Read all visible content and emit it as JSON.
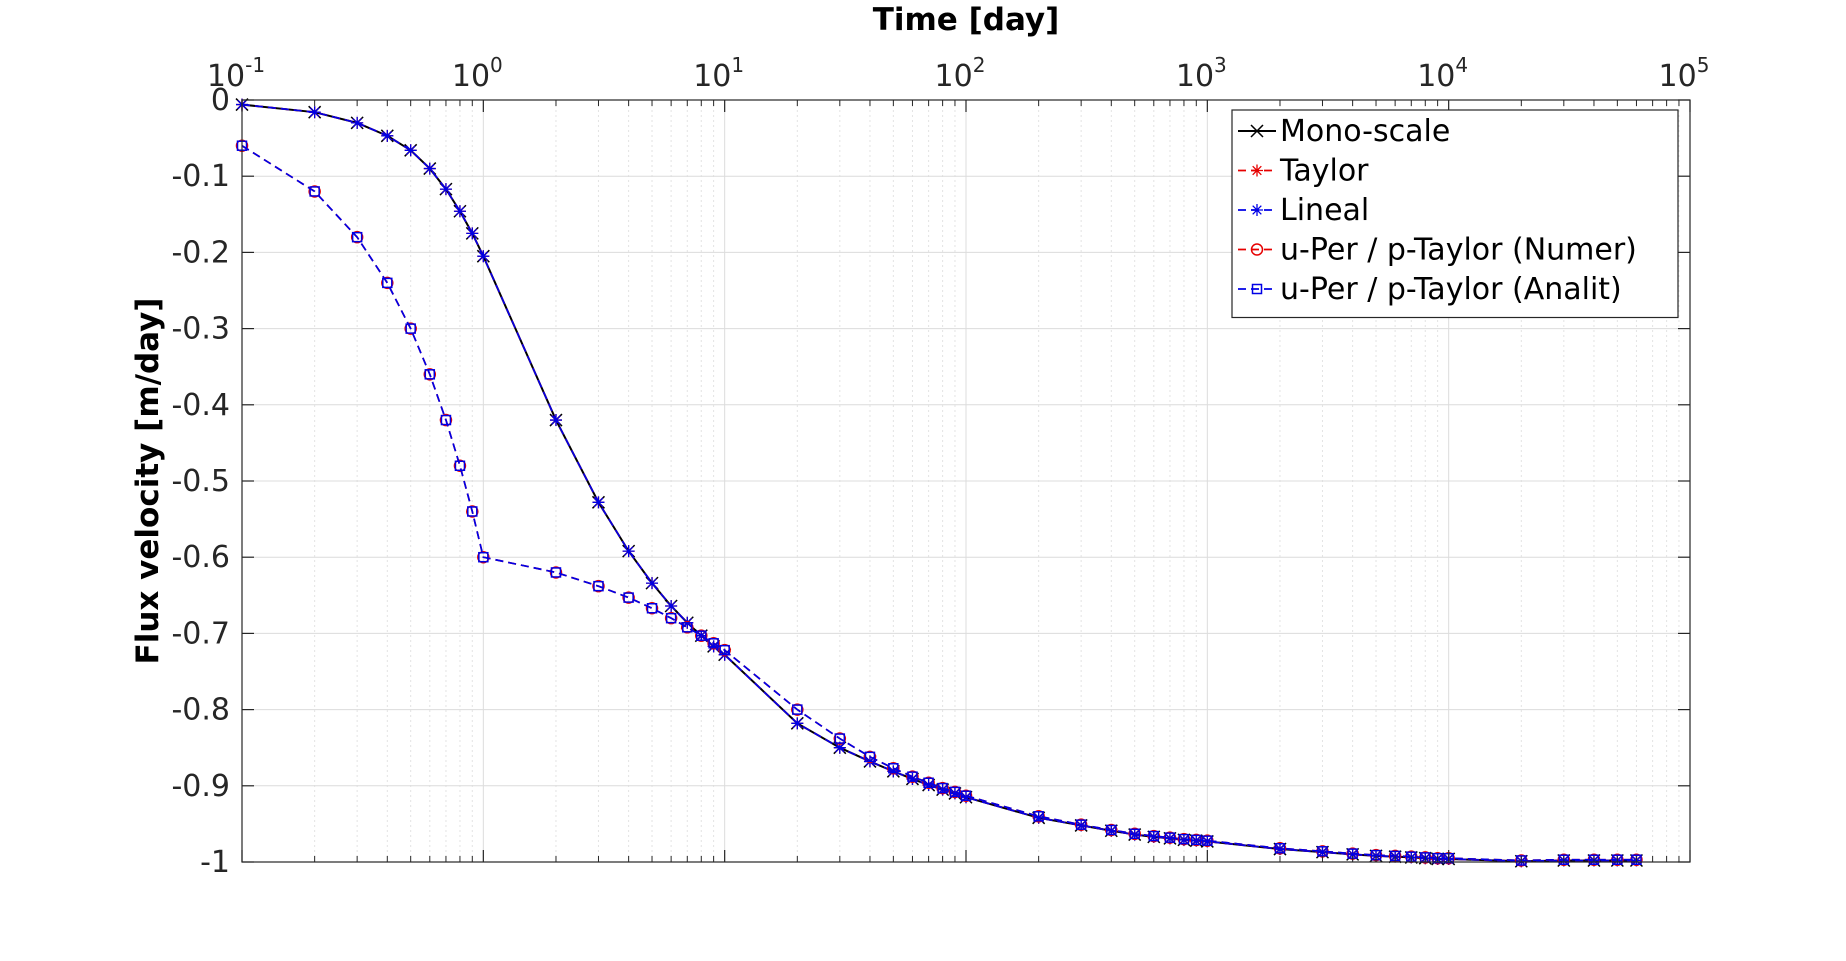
{
  "chart_data": {
    "type": "line",
    "xlabel": "Time [day]",
    "ylabel": "Flux velocity [m/day]",
    "x_scale": "log",
    "xlim": [
      0.1,
      100000
    ],
    "ylim": [
      -1,
      0
    ],
    "x_axis_position": "top",
    "grid": true,
    "legend_position": "top-right",
    "x_ticks": [
      {
        "base": "10",
        "exp": "-1",
        "value": 0.1
      },
      {
        "base": "10",
        "exp": "0",
        "value": 1
      },
      {
        "base": "10",
        "exp": "1",
        "value": 10
      },
      {
        "base": "10",
        "exp": "2",
        "value": 100
      },
      {
        "base": "10",
        "exp": "3",
        "value": 1000
      },
      {
        "base": "10",
        "exp": "4",
        "value": 10000
      },
      {
        "base": "10",
        "exp": "5",
        "value": 100000
      }
    ],
    "y_ticks": [
      {
        "label": "0",
        "value": 0
      },
      {
        "label": "-0.1",
        "value": -0.1
      },
      {
        "label": "-0.2",
        "value": -0.2
      },
      {
        "label": "-0.3",
        "value": -0.3
      },
      {
        "label": "-0.4",
        "value": -0.4
      },
      {
        "label": "-0.5",
        "value": -0.5
      },
      {
        "label": "-0.6",
        "value": -0.6
      },
      {
        "label": "-0.7",
        "value": -0.7
      },
      {
        "label": "-0.8",
        "value": -0.8
      },
      {
        "label": "-0.9",
        "value": -0.9
      },
      {
        "label": "-1",
        "value": -1
      }
    ],
    "x": [
      0.1,
      0.2,
      0.3,
      0.4,
      0.5,
      0.6,
      0.7,
      0.8,
      0.9,
      1,
      2,
      3,
      4,
      5,
      6,
      7,
      8,
      9,
      10,
      20,
      30,
      40,
      50,
      60,
      70,
      80,
      90,
      100,
      200,
      300,
      400,
      500,
      600,
      700,
      800,
      900,
      1000,
      2000,
      3000,
      4000,
      5000,
      6000,
      7000,
      8000,
      9000,
      10000,
      20000,
      30000,
      40000,
      50000,
      60000
    ],
    "series": [
      {
        "name": "Mono-scale",
        "color": "#000000",
        "dash": "solid",
        "marker": "x",
        "values": [
          -0.006,
          -0.016,
          -0.03,
          -0.047,
          -0.066,
          -0.09,
          -0.117,
          -0.146,
          -0.175,
          -0.205,
          -0.42,
          -0.528,
          -0.592,
          -0.634,
          -0.664,
          -0.686,
          -0.703,
          -0.717,
          -0.728,
          -0.818,
          -0.85,
          -0.868,
          -0.881,
          -0.891,
          -0.899,
          -0.905,
          -0.91,
          -0.915,
          -0.942,
          -0.952,
          -0.959,
          -0.964,
          -0.967,
          -0.969,
          -0.971,
          -0.972,
          -0.973,
          -0.983,
          -0.987,
          -0.99,
          -0.992,
          -0.993,
          -0.994,
          -0.995,
          -0.996,
          -0.996,
          -0.999,
          -0.998,
          -0.998,
          -0.998,
          -0.998
        ]
      },
      {
        "name": "Taylor",
        "color": "#e60000",
        "dash": "dashed",
        "marker": "*",
        "values": [
          -0.006,
          -0.016,
          -0.03,
          -0.047,
          -0.066,
          -0.09,
          -0.117,
          -0.146,
          -0.175,
          -0.205,
          -0.42,
          -0.528,
          -0.592,
          -0.634,
          -0.664,
          -0.686,
          -0.703,
          -0.717,
          -0.728,
          -0.818,
          -0.85,
          -0.868,
          -0.881,
          -0.891,
          -0.899,
          -0.905,
          -0.91,
          -0.915,
          -0.942,
          -0.952,
          -0.959,
          -0.964,
          -0.967,
          -0.969,
          -0.971,
          -0.972,
          -0.973,
          -0.983,
          -0.987,
          -0.99,
          -0.992,
          -0.993,
          -0.994,
          -0.995,
          -0.996,
          -0.996,
          -0.999,
          -0.998,
          -0.998,
          -0.998,
          -0.998
        ]
      },
      {
        "name": "Lineal",
        "color": "#0000e6",
        "dash": "dashed",
        "marker": "*",
        "values": [
          -0.006,
          -0.016,
          -0.03,
          -0.047,
          -0.066,
          -0.09,
          -0.117,
          -0.146,
          -0.175,
          -0.205,
          -0.42,
          -0.528,
          -0.592,
          -0.634,
          -0.664,
          -0.686,
          -0.703,
          -0.717,
          -0.728,
          -0.818,
          -0.85,
          -0.868,
          -0.881,
          -0.891,
          -0.899,
          -0.905,
          -0.91,
          -0.915,
          -0.942,
          -0.952,
          -0.959,
          -0.964,
          -0.967,
          -0.969,
          -0.971,
          -0.972,
          -0.973,
          -0.983,
          -0.987,
          -0.99,
          -0.992,
          -0.993,
          -0.994,
          -0.995,
          -0.996,
          -0.996,
          -0.999,
          -0.998,
          -0.998,
          -0.998,
          -0.998
        ]
      },
      {
        "name": "u-Per / p-Taylor (Numer)",
        "color": "#e60000",
        "dash": "dashed",
        "marker": "o",
        "values": [
          -0.06,
          -0.12,
          -0.18,
          -0.24,
          -0.3,
          -0.36,
          -0.42,
          -0.48,
          -0.54,
          -0.6,
          -0.62,
          -0.638,
          -0.653,
          -0.667,
          -0.68,
          -0.692,
          -0.703,
          -0.713,
          -0.722,
          -0.8,
          -0.838,
          -0.862,
          -0.877,
          -0.888,
          -0.896,
          -0.903,
          -0.908,
          -0.913,
          -0.94,
          -0.951,
          -0.958,
          -0.963,
          -0.966,
          -0.968,
          -0.97,
          -0.971,
          -0.972,
          -0.982,
          -0.986,
          -0.989,
          -0.991,
          -0.992,
          -0.993,
          -0.994,
          -0.995,
          -0.995,
          -0.998,
          -0.997,
          -0.997,
          -0.997,
          -0.997
        ]
      },
      {
        "name": "u-Per / p-Taylor (Analit)",
        "color": "#0000e6",
        "dash": "dashed",
        "marker": "s",
        "values": [
          -0.06,
          -0.12,
          -0.18,
          -0.24,
          -0.3,
          -0.36,
          -0.42,
          -0.48,
          -0.54,
          -0.6,
          -0.62,
          -0.638,
          -0.653,
          -0.667,
          -0.68,
          -0.692,
          -0.703,
          -0.713,
          -0.722,
          -0.8,
          -0.838,
          -0.862,
          -0.877,
          -0.888,
          -0.896,
          -0.903,
          -0.908,
          -0.913,
          -0.94,
          -0.951,
          -0.958,
          -0.963,
          -0.966,
          -0.968,
          -0.97,
          -0.971,
          -0.972,
          -0.982,
          -0.986,
          -0.989,
          -0.991,
          -0.992,
          -0.993,
          -0.994,
          -0.995,
          -0.995,
          -0.998,
          -0.997,
          -0.997,
          -0.997,
          -0.997
        ]
      }
    ]
  }
}
